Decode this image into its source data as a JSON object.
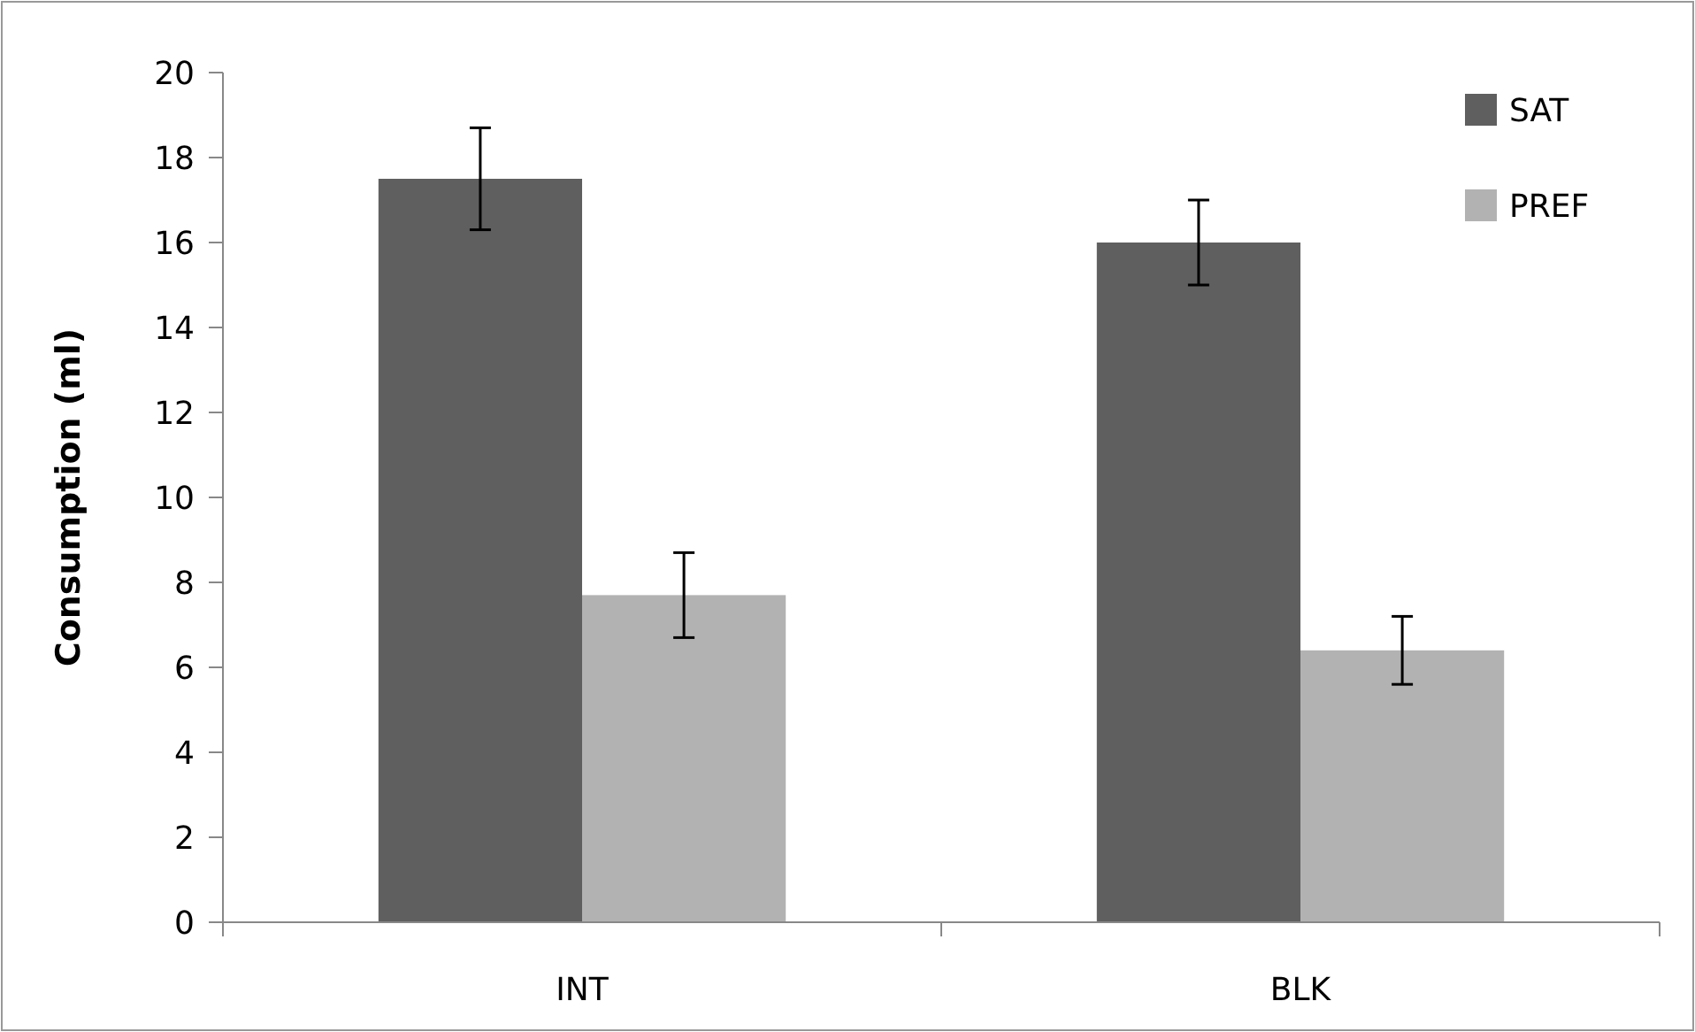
{
  "chart_data": {
    "type": "bar",
    "ylabel": "Consumption (ml)",
    "categories": [
      "INT",
      "BLK"
    ],
    "series": [
      {
        "name": "SAT",
        "color": "#5f5f5f",
        "values": [
          17.5,
          16.0
        ],
        "errors": [
          1.2,
          1.0
        ]
      },
      {
        "name": "PREF",
        "color": "#b2b2b2",
        "values": [
          7.7,
          6.4
        ],
        "errors": [
          1.0,
          0.8
        ]
      }
    ],
    "ylim": [
      0,
      20
    ],
    "yticks": [
      0,
      2,
      4,
      6,
      8,
      10,
      12,
      14,
      16,
      18,
      20
    ],
    "legend": "top right"
  }
}
